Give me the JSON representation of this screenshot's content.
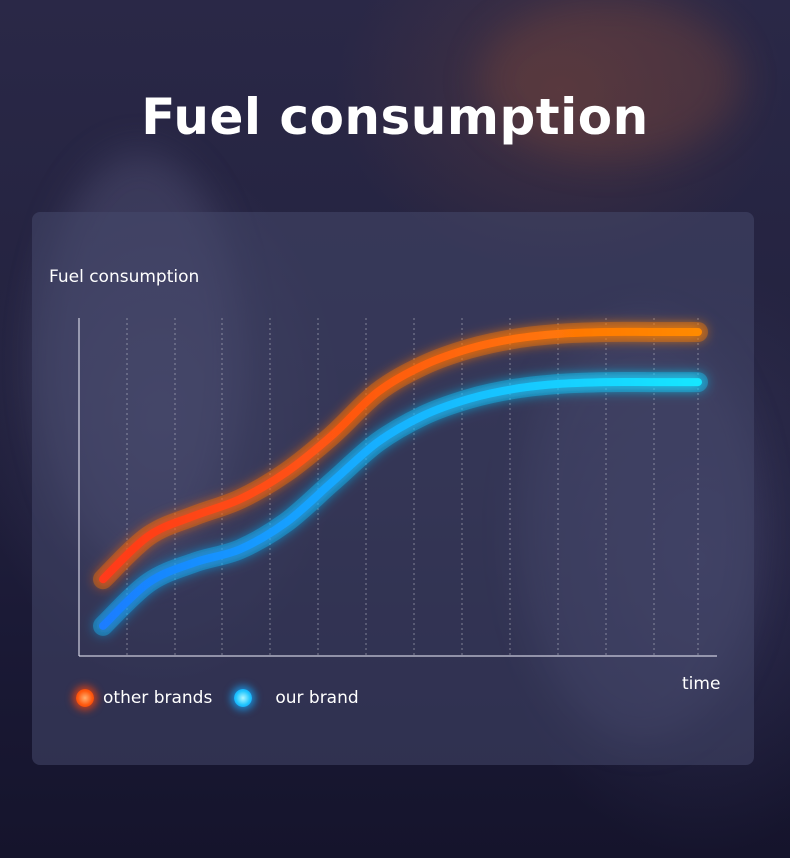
{
  "title": "Fuel consumption",
  "chart_data": {
    "type": "line",
    "title": "Fuel consumption",
    "ylabel": "Fuel consumption",
    "xlabel": "time",
    "x": [
      0,
      1,
      2,
      3,
      4,
      5,
      6,
      7,
      8,
      9,
      10,
      11,
      12,
      13
    ],
    "ylim": [
      0,
      100
    ],
    "xlim": [
      0,
      13
    ],
    "grid": "vertical-dotted",
    "legend_position": "bottom-left",
    "series": [
      {
        "name": "other brands",
        "color": "#ff7a00",
        "values": [
          23,
          36,
          42,
          47,
          55,
          66,
          79,
          87,
          92,
          95,
          96.5,
          97,
          97,
          97
        ]
      },
      {
        "name": "our brand",
        "color": "#14c8ff",
        "values": [
          9,
          22,
          28,
          32,
          40,
          52,
          64,
          72,
          77,
          80,
          81.5,
          82,
          82,
          82
        ]
      }
    ]
  }
}
